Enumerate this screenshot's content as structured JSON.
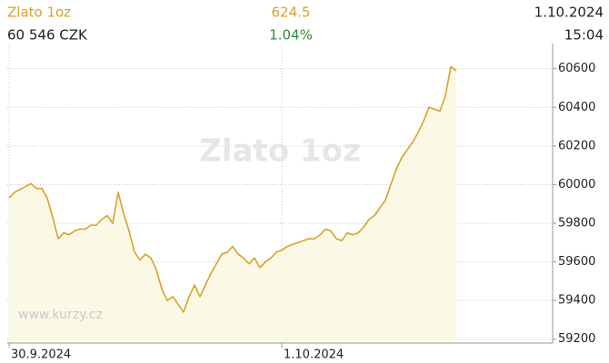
{
  "header": {
    "price": "624.5",
    "date": "1.10.2024",
    "czk": "60 546 CZK",
    "change": "1.04%",
    "time": "15:04"
  },
  "chart_data": {
    "type": "line",
    "title": "Zlato 1oz",
    "source": "www.kurzy.cz",
    "categories": [
      "30.9.2024",
      null,
      null,
      null,
      null,
      null,
      null,
      null,
      null,
      null,
      null,
      null,
      null,
      null,
      null,
      null,
      null,
      null,
      null,
      null,
      null,
      null,
      null,
      null,
      null,
      null,
      null,
      null,
      null,
      null,
      null,
      null,
      null,
      null,
      null,
      null,
      null,
      null,
      null,
      null,
      null,
      null,
      null,
      null,
      null,
      null,
      null,
      null,
      null,
      null,
      "1.10.2024",
      null,
      null,
      null,
      null,
      null,
      null,
      null,
      null,
      null,
      null,
      null,
      null,
      null,
      null,
      null,
      null,
      null,
      null,
      null,
      null,
      null,
      null,
      null,
      null,
      null,
      null,
      null,
      null,
      null,
      null,
      null,
      null
    ],
    "series": [
      {
        "name": "Zlato 1oz",
        "color": "#d9a227",
        "values": [
          59930,
          59960,
          59975,
          59990,
          60005,
          59980,
          59980,
          59930,
          59830,
          59720,
          59750,
          59740,
          59760,
          59770,
          59770,
          59790,
          59790,
          59820,
          59840,
          59800,
          59960,
          59850,
          59760,
          59650,
          59610,
          59640,
          59620,
          59560,
          59460,
          59400,
          59420,
          59380,
          59340,
          59420,
          59480,
          59420,
          59480,
          59540,
          59590,
          59640,
          59650,
          59680,
          59640,
          59620,
          59590,
          59620,
          59570,
          59600,
          59620,
          59650,
          59660,
          59680,
          59690,
          59700,
          59710,
          59720,
          59720,
          59740,
          59770,
          59760,
          59720,
          59710,
          59750,
          59740,
          59750,
          59780,
          59820,
          59840,
          59880,
          59920,
          60000,
          60080,
          60140,
          60180,
          60220,
          60270,
          60330,
          60400,
          60390,
          60380,
          60460,
          60610,
          60590
        ]
      }
    ],
    "ylim": [
      59180,
      60730
    ],
    "yticks": [
      59200,
      59400,
      59600,
      59800,
      60000,
      60200,
      60400,
      60600
    ],
    "grid": true
  }
}
